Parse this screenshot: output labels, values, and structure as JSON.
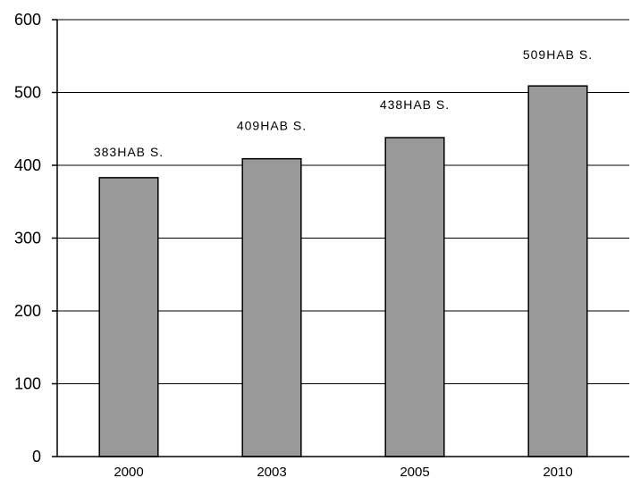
{
  "chart_data": {
    "type": "bar",
    "categories": [
      "2000",
      "2003",
      "2005",
      "2010"
    ],
    "values": [
      383,
      409,
      438,
      509
    ],
    "data_labels": [
      "383HAB S.",
      "409HAB S.",
      "438HAB S.",
      "509HAB S."
    ],
    "ylim": [
      0,
      600
    ],
    "yticks": [
      0,
      100,
      200,
      300,
      400,
      500,
      600
    ],
    "grid": true,
    "bar_color": "#999999",
    "bar_stroke": "#000000"
  }
}
